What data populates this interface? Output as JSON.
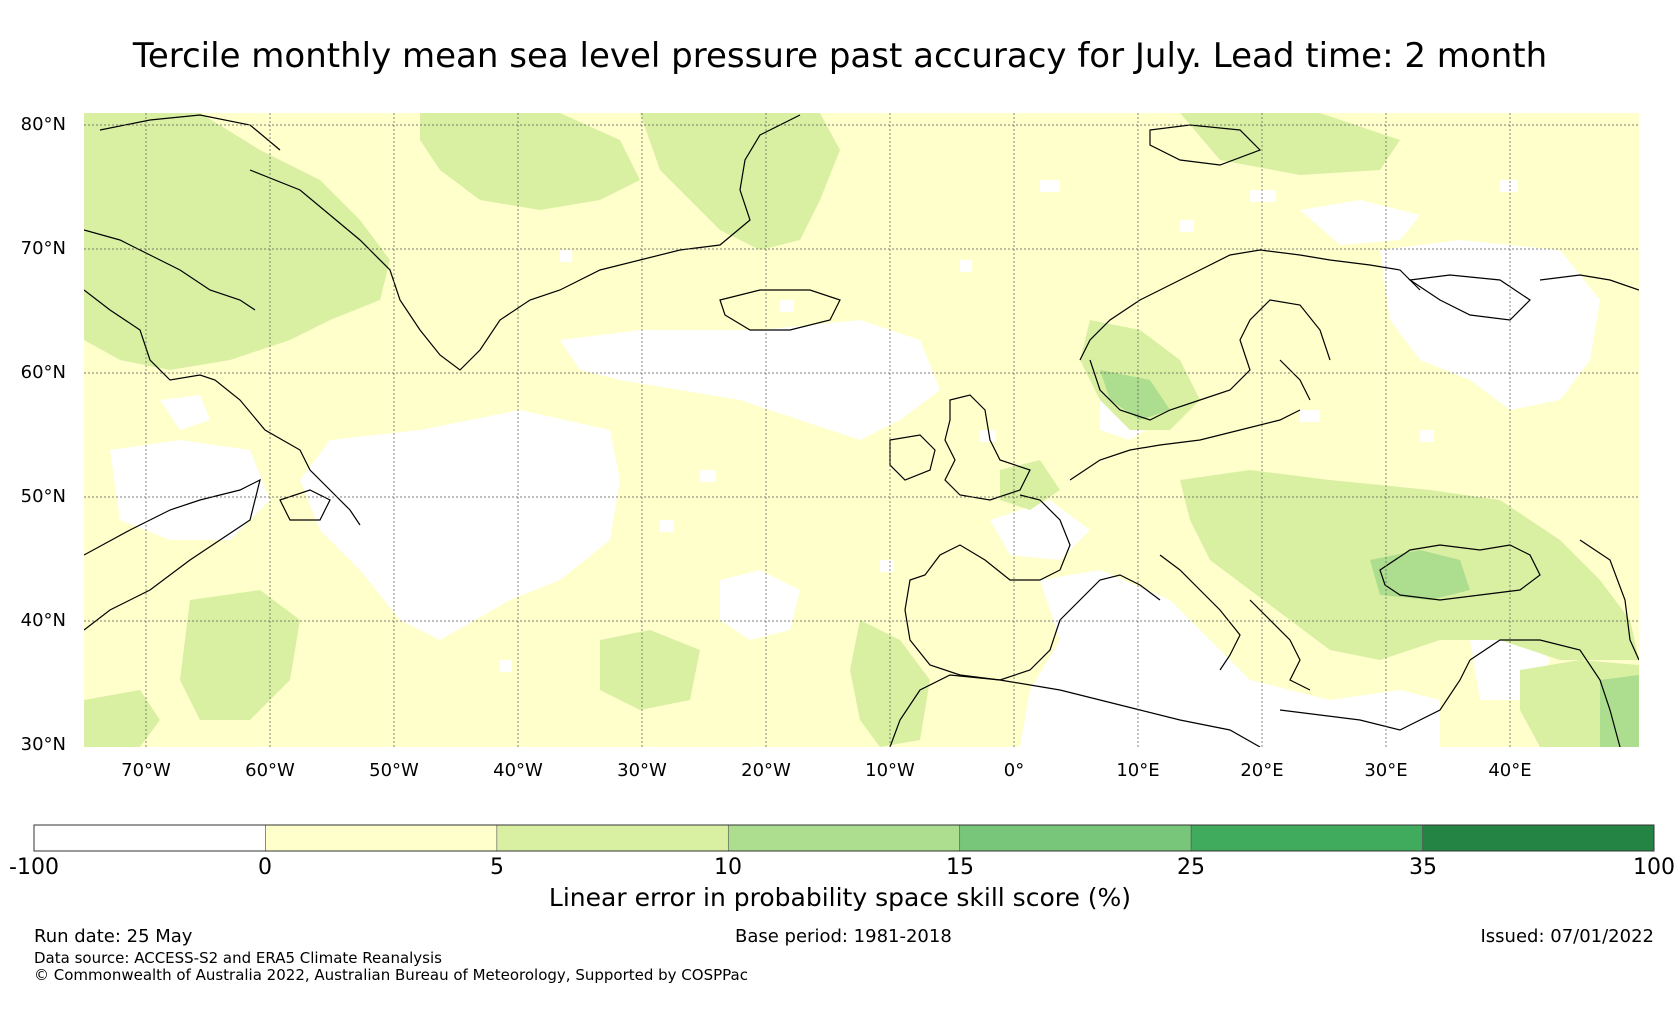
{
  "title": "Tercile monthly mean sea level pressure past accuracy for July. Lead time: 2 month",
  "map": {
    "lat_labels": [
      "80°N",
      "70°N",
      "60°N",
      "50°N",
      "40°N",
      "30°N"
    ],
    "lon_labels": [
      "70°W",
      "60°W",
      "50°W",
      "40°W",
      "30°W",
      "20°W",
      "10°W",
      "0°",
      "10°E",
      "20°E",
      "30°E",
      "40°E"
    ],
    "lon_range": [
      -75,
      50
    ],
    "lat_range": [
      30,
      81
    ],
    "gridlines": true
  },
  "colorbar": {
    "ticks": [
      "-100",
      "0",
      "5",
      "10",
      "15",
      "25",
      "35",
      "100"
    ],
    "colors": [
      "#ffffff",
      "#ffffcc",
      "#d9f0a3",
      "#addd8e",
      "#78c679",
      "#41ab5d",
      "#238443"
    ],
    "label": "Linear error in probability space skill score (%)"
  },
  "footer": {
    "run_date": "Run date: 25 May",
    "base_period": "Base period: 1981-2018",
    "issued": "Issued: 07/01/2022",
    "data_source": "Data source: ACCESS-S2 and ERA5 Climate Reanalysis",
    "copyright": "© Commonwealth of Australia 2022, Australian Bureau of Meteorology, Supported by COSPPac"
  }
}
